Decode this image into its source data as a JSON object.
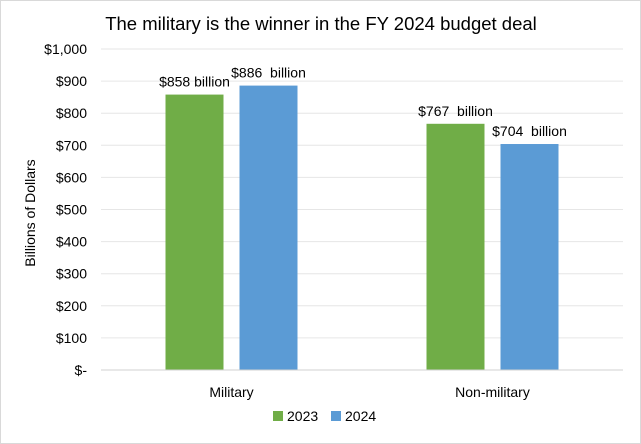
{
  "chart_data": {
    "type": "bar",
    "title": "The military is the winner in the FY 2024 budget deal",
    "xlabel": "",
    "ylabel": "Billions of Dollars",
    "categories": [
      "Military",
      "Non-military"
    ],
    "series": [
      {
        "name": "2023",
        "color": "#70ad47",
        "values": [
          858,
          767
        ],
        "labels": [
          "$858 billion",
          "$767  billion"
        ]
      },
      {
        "name": "2024",
        "color": "#5b9bd5",
        "values": [
          886,
          704
        ],
        "labels": [
          "$886  billion",
          "$704  billion"
        ]
      }
    ],
    "ylim": [
      0,
      1000
    ],
    "yticks": [
      0,
      100,
      200,
      300,
      400,
      500,
      600,
      700,
      800,
      900,
      1000
    ],
    "ytick_labels": [
      "$-",
      "$100",
      "$200",
      "$300",
      "$400",
      "$500",
      "$600",
      "$700",
      "$800",
      "$900",
      "$1,000"
    ],
    "grid": true,
    "legend_position": "bottom"
  }
}
